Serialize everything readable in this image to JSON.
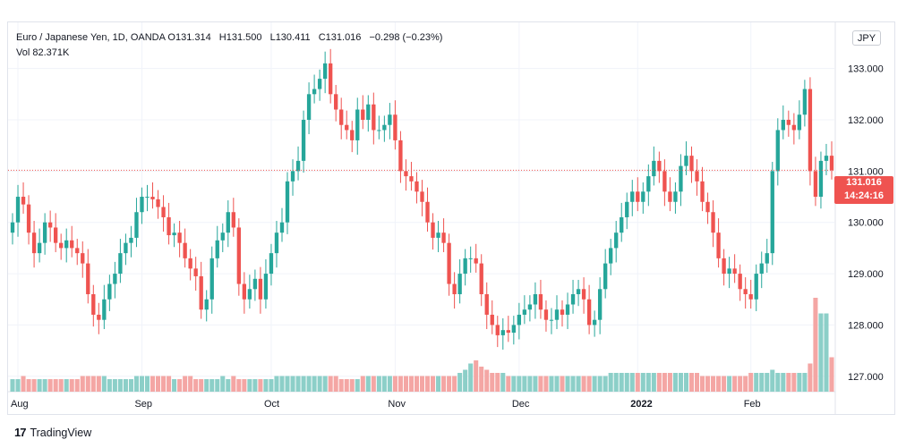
{
  "legend": {
    "symbol": "Euro / Japanese Yen, 1D, OANDA",
    "open_label": "O",
    "open": "131.314",
    "high_label": "H",
    "high": "131.500",
    "low_label": "L",
    "low": "130.411",
    "close_label": "C",
    "close": "131.016",
    "change": "−0.298 (−0.23%)",
    "vol_label": "Vol",
    "vol": "82.371K"
  },
  "currency_button": "JPY",
  "last_price": {
    "price": "131.016",
    "countdown": "14:24:16"
  },
  "branding": {
    "logo": "17",
    "name": "TradingView"
  },
  "colors": {
    "up": "#26a69a",
    "down": "#ef5350",
    "up_vol": "#8ccfc8",
    "down_vol": "#f4a6a4",
    "grid": "#f0f3fa"
  },
  "chart_data": {
    "type": "candlestick",
    "series": "EUR/JPY daily",
    "ylim": [
      126.7,
      133.9
    ],
    "y_ticks": [
      "127.000",
      "128.000",
      "129.000",
      "130.000",
      "131.000",
      "132.000",
      "133.000"
    ],
    "x_tick_labels": [
      "Aug",
      "Sep",
      "Oct",
      "Nov",
      "Dec",
      "2022",
      "Feb"
    ],
    "x_tick_index": [
      1,
      24,
      48,
      71,
      94,
      116,
      137
    ],
    "last_close": 131.016,
    "closes": [
      130.0,
      130.5,
      130.35,
      129.8,
      129.4,
      129.6,
      130.0,
      129.9,
      129.6,
      129.5,
      129.65,
      129.5,
      129.4,
      129.2,
      128.6,
      128.2,
      128.1,
      128.5,
      128.8,
      129.0,
      129.4,
      129.6,
      129.7,
      130.2,
      130.5,
      130.5,
      130.45,
      130.3,
      130.1,
      129.75,
      129.8,
      129.6,
      129.3,
      129.1,
      128.95,
      128.3,
      128.5,
      129.3,
      129.65,
      129.8,
      130.2,
      129.9,
      128.8,
      128.5,
      128.7,
      128.9,
      128.5,
      129.0,
      129.4,
      129.8,
      130.0,
      130.8,
      131.0,
      131.2,
      132.0,
      132.5,
      132.6,
      132.8,
      133.1,
      132.5,
      132.2,
      131.9,
      131.8,
      131.6,
      132.2,
      132.0,
      132.3,
      131.8,
      131.8,
      131.9,
      132.1,
      131.6,
      131.0,
      130.9,
      130.8,
      130.6,
      130.4,
      130.0,
      129.7,
      129.8,
      129.6,
      128.8,
      128.6,
      129.0,
      129.3,
      129.3,
      129.2,
      128.6,
      128.2,
      128.0,
      127.8,
      127.9,
      127.85,
      128.0,
      128.2,
      128.3,
      128.4,
      128.6,
      128.3,
      128.1,
      128.1,
      128.3,
      128.2,
      128.4,
      128.6,
      128.7,
      128.5,
      128.0,
      128.1,
      128.7,
      129.2,
      129.5,
      129.8,
      130.1,
      130.4,
      130.6,
      130.4,
      130.6,
      130.9,
      131.2,
      131.0,
      130.6,
      130.4,
      130.6,
      131.1,
      131.3,
      131.0,
      130.8,
      130.4,
      130.2,
      129.8,
      129.3,
      129.0,
      129.1,
      129.0,
      128.7,
      128.6,
      128.5,
      129.0,
      129.2,
      129.4,
      131.0,
      131.8,
      132.0,
      131.9,
      131.8,
      132.1,
      132.6,
      131.0,
      130.5,
      131.2,
      131.3,
      131.016
    ],
    "volume": [
      4,
      4,
      5,
      4,
      4,
      4,
      4,
      4,
      4,
      4,
      4,
      4,
      4,
      5,
      5,
      5,
      5,
      5,
      4,
      4,
      4,
      4,
      4,
      5,
      5,
      5,
      5,
      5,
      5,
      5,
      4,
      4,
      5,
      5,
      4,
      4,
      4,
      4,
      4,
      5,
      4,
      5,
      4,
      4,
      4,
      4,
      4,
      4,
      4,
      5,
      5,
      5,
      5,
      5,
      5,
      5,
      5,
      5,
      5,
      5,
      5,
      4,
      4,
      4,
      4,
      5,
      5,
      5,
      5,
      5,
      5,
      5,
      5,
      5,
      5,
      5,
      5,
      5,
      5,
      5,
      5,
      5,
      5,
      6,
      7,
      9,
      10,
      8,
      7,
      6,
      6,
      6,
      5,
      5,
      5,
      5,
      5,
      5,
      5,
      5,
      5,
      5,
      5,
      5,
      5,
      5,
      5,
      5,
      5,
      5,
      5,
      6,
      6,
      6,
      6,
      6,
      6,
      6,
      6,
      6,
      6,
      6,
      6,
      6,
      6,
      6,
      6,
      6,
      5,
      5,
      5,
      5,
      5,
      5,
      5,
      5,
      5,
      6,
      6,
      6,
      6,
      7,
      6,
      6,
      6,
      6,
      6,
      6,
      9,
      30,
      25,
      25,
      11
    ]
  }
}
